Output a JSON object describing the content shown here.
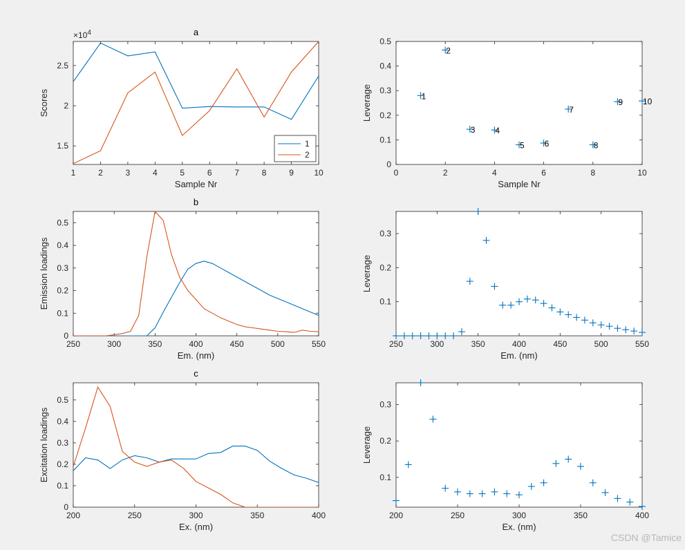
{
  "colors": {
    "series1": "#0072BD",
    "series2": "#D95319",
    "axis": "#262626"
  },
  "watermark": "CSDN @Tamice",
  "chart_data": [
    {
      "id": "a",
      "type": "line",
      "title": "a",
      "xlabel": "Sample Nr",
      "ylabel": "Scores",
      "exponent_label": "×10",
      "exponent_power": "4",
      "xlim": [
        1,
        10
      ],
      "ylim": [
        12700,
        28000
      ],
      "xticks": [
        1,
        2,
        3,
        4,
        5,
        6,
        7,
        8,
        9,
        10
      ],
      "yticks": [
        15000,
        20000,
        25000
      ],
      "ytick_labels": [
        "1.5",
        "2",
        "2.5"
      ],
      "x": [
        1,
        2,
        3,
        4,
        5,
        6,
        7,
        8,
        9,
        10
      ],
      "series": [
        {
          "name": "1",
          "color": "#0072BD",
          "values": [
            23000,
            27800,
            26200,
            26700,
            19700,
            19900,
            19850,
            19850,
            18300,
            23700
          ]
        },
        {
          "name": "2",
          "color": "#D95319",
          "values": [
            12800,
            14400,
            21600,
            24200,
            16300,
            19400,
            24600,
            18600,
            24200,
            28000
          ]
        }
      ],
      "legend": "bottom-right"
    },
    {
      "id": "a-lev",
      "type": "scatter",
      "title": "",
      "xlabel": "Sample Nr",
      "ylabel": "Leverage",
      "xlim": [
        0,
        10
      ],
      "ylim": [
        0,
        0.5
      ],
      "xticks": [
        0,
        2,
        4,
        6,
        8,
        10
      ],
      "yticks": [
        0,
        0.1,
        0.2,
        0.3,
        0.4,
        0.5
      ],
      "ytick_labels": [
        "0",
        "0.1",
        "0.2",
        "0.3",
        "0.4",
        "0.5"
      ],
      "x": [
        1,
        2,
        3,
        4,
        5,
        6,
        7,
        8,
        9,
        10
      ],
      "values": [
        0.28,
        0.465,
        0.143,
        0.14,
        0.08,
        0.087,
        0.225,
        0.08,
        0.255,
        0.258
      ],
      "point_labels": [
        "1",
        "2",
        "3",
        "4",
        "5",
        "6",
        "7",
        "8",
        "9",
        "10"
      ]
    },
    {
      "id": "b",
      "type": "line",
      "title": "b",
      "xlabel": "Em. (nm)",
      "ylabel": "Emission loadings",
      "xlim": [
        250,
        550
      ],
      "ylim": [
        0,
        0.55
      ],
      "xticks": [
        250,
        300,
        350,
        400,
        450,
        500,
        550
      ],
      "yticks": [
        0,
        0.1,
        0.2,
        0.3,
        0.4,
        0.5
      ],
      "ytick_labels": [
        "0",
        "0.1",
        "0.2",
        "0.3",
        "0.4",
        "0.5"
      ],
      "x": [
        250,
        260,
        270,
        280,
        290,
        300,
        310,
        320,
        330,
        340,
        350,
        360,
        370,
        380,
        390,
        400,
        410,
        420,
        430,
        440,
        450,
        460,
        470,
        480,
        490,
        500,
        510,
        520,
        530,
        540,
        550
      ],
      "series": [
        {
          "name": "1",
          "color": "#0072BD",
          "values": [
            0,
            0,
            0,
            0,
            0,
            0,
            0,
            0,
            0,
            0,
            0.035,
            0.105,
            0.17,
            0.235,
            0.295,
            0.32,
            0.33,
            0.32,
            0.3,
            0.28,
            0.26,
            0.24,
            0.22,
            0.2,
            0.18,
            0.165,
            0.15,
            0.135,
            0.12,
            0.105,
            0.09
          ]
        },
        {
          "name": "2",
          "color": "#D95319",
          "values": [
            0,
            0,
            0,
            0,
            0,
            0.005,
            0.01,
            0.02,
            0.09,
            0.35,
            0.55,
            0.51,
            0.36,
            0.26,
            0.2,
            0.16,
            0.12,
            0.1,
            0.08,
            0.065,
            0.05,
            0.04,
            0.035,
            0.03,
            0.025,
            0.02,
            0.018,
            0.015,
            0.025,
            0.02,
            0.018
          ]
        }
      ]
    },
    {
      "id": "b-lev",
      "type": "scatter",
      "title": "",
      "xlabel": "Em. (nm)",
      "ylabel": "Leverage",
      "xlim": [
        250,
        550
      ],
      "ylim": [
        0,
        0.365
      ],
      "xticks": [
        250,
        300,
        350,
        400,
        450,
        500,
        550
      ],
      "yticks": [
        0.1,
        0.2,
        0.3
      ],
      "ytick_labels": [
        "0.1",
        "0.2",
        "0.3"
      ],
      "x": [
        250,
        260,
        270,
        280,
        290,
        300,
        310,
        320,
        330,
        340,
        350,
        360,
        370,
        380,
        390,
        400,
        410,
        420,
        430,
        440,
        450,
        460,
        470,
        480,
        490,
        500,
        510,
        520,
        530,
        540,
        550
      ],
      "values": [
        0,
        0,
        0,
        0,
        0,
        0,
        0,
        0,
        0.012,
        0.16,
        0.365,
        0.28,
        0.145,
        0.09,
        0.09,
        0.1,
        0.108,
        0.105,
        0.095,
        0.082,
        0.07,
        0.062,
        0.054,
        0.046,
        0.038,
        0.032,
        0.028,
        0.022,
        0.018,
        0.014,
        0.01
      ]
    },
    {
      "id": "c",
      "type": "line",
      "title": "c",
      "xlabel": "Ex. (nm)",
      "ylabel": "Excitation loadings",
      "xlim": [
        200,
        400
      ],
      "ylim": [
        0,
        0.58
      ],
      "xticks": [
        200,
        250,
        300,
        350,
        400
      ],
      "yticks": [
        0,
        0.1,
        0.2,
        0.3,
        0.4,
        0.5
      ],
      "ytick_labels": [
        "0",
        "0.1",
        "0.2",
        "0.3",
        "0.4",
        "0.5"
      ],
      "x": [
        200,
        210,
        220,
        230,
        240,
        250,
        260,
        270,
        280,
        290,
        300,
        310,
        320,
        330,
        340,
        350,
        360,
        370,
        380,
        390,
        400
      ],
      "series": [
        {
          "name": "1",
          "color": "#0072BD",
          "values": [
            0.17,
            0.23,
            0.22,
            0.18,
            0.22,
            0.24,
            0.23,
            0.21,
            0.225,
            0.225,
            0.225,
            0.25,
            0.255,
            0.285,
            0.285,
            0.265,
            0.215,
            0.18,
            0.15,
            0.135,
            0.115
          ]
        },
        {
          "name": "2",
          "color": "#D95319",
          "values": [
            0.19,
            0.37,
            0.56,
            0.47,
            0.26,
            0.21,
            0.19,
            0.21,
            0.22,
            0.18,
            0.12,
            0.09,
            0.06,
            0.02,
            0,
            0,
            0,
            0,
            0,
            0,
            0
          ]
        }
      ]
    },
    {
      "id": "c-lev",
      "type": "scatter",
      "title": "",
      "xlabel": "Ex. (nm)",
      "ylabel": "Leverage",
      "xlim": [
        200,
        400
      ],
      "ylim": [
        0.018,
        0.36
      ],
      "xticks": [
        200,
        250,
        300,
        350,
        400
      ],
      "yticks": [
        0.1,
        0.2,
        0.3
      ],
      "ytick_labels": [
        "0.1",
        "0.2",
        "0.3"
      ],
      "x": [
        200,
        210,
        220,
        230,
        240,
        250,
        260,
        270,
        280,
        290,
        300,
        310,
        320,
        330,
        340,
        350,
        360,
        370,
        380,
        390,
        400
      ],
      "values": [
        0.036,
        0.135,
        0.36,
        0.26,
        0.07,
        0.06,
        0.055,
        0.055,
        0.06,
        0.055,
        0.052,
        0.075,
        0.085,
        0.138,
        0.15,
        0.13,
        0.085,
        0.058,
        0.042,
        0.032,
        0.02
      ]
    }
  ]
}
